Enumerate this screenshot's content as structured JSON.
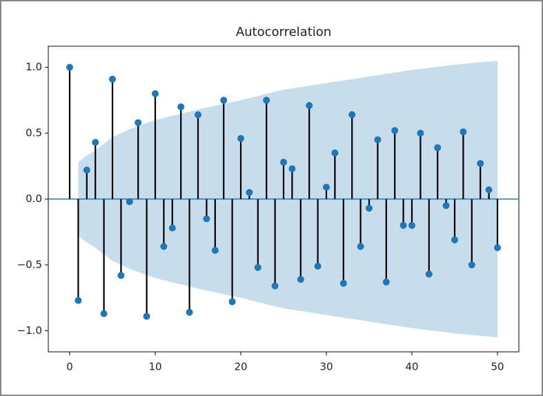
{
  "chart_data": {
    "type": "stem",
    "title": "Autocorrelation",
    "x": [
      0,
      1,
      2,
      3,
      4,
      5,
      6,
      7,
      8,
      9,
      10,
      11,
      12,
      13,
      14,
      15,
      16,
      17,
      18,
      19,
      20,
      21,
      22,
      23,
      24,
      25,
      26,
      27,
      28,
      29,
      30,
      31,
      32,
      33,
      34,
      35,
      36,
      37,
      38,
      39,
      40,
      41,
      42,
      43,
      44,
      45,
      46,
      47,
      48,
      49,
      50
    ],
    "values": [
      1.0,
      -0.77,
      0.22,
      0.43,
      -0.87,
      0.91,
      -0.58,
      -0.02,
      0.58,
      -0.89,
      0.8,
      -0.36,
      -0.22,
      0.7,
      -0.86,
      0.64,
      -0.15,
      -0.39,
      0.75,
      -0.78,
      0.46,
      0.05,
      -0.52,
      0.75,
      -0.66,
      0.28,
      0.23,
      -0.61,
      0.71,
      -0.51,
      0.09,
      0.35,
      -0.64,
      0.64,
      -0.36,
      -0.07,
      0.45,
      -0.63,
      0.52,
      -0.2,
      -0.2,
      0.5,
      -0.57,
      0.39,
      -0.05,
      -0.31,
      0.51,
      -0.5,
      0.27,
      0.07,
      -0.37
    ],
    "color": "#1f77b4",
    "stem_color": "#000000",
    "band": {
      "x": [
        1,
        2,
        3,
        5,
        7,
        10,
        15,
        20,
        25,
        30,
        35,
        40,
        45,
        50
      ],
      "halfwidth": [
        0.28,
        0.33,
        0.37,
        0.47,
        0.53,
        0.6,
        0.68,
        0.75,
        0.83,
        0.88,
        0.93,
        0.98,
        1.02,
        1.05
      ],
      "color": "#1f77b4"
    },
    "xlim": [
      -2.5,
      52.5
    ],
    "ylim": [
      -1.16,
      1.16
    ],
    "xticks": [
      0,
      10,
      20,
      30,
      40,
      50
    ],
    "yticks": [
      {
        "value": -1.0,
        "label": "−1.0"
      },
      {
        "value": -0.5,
        "label": "−0.5"
      },
      {
        "value": 0.0,
        "label": "0.0"
      },
      0.5,
      {
        "value": 1.0,
        "label": "1.0"
      }
    ]
  }
}
